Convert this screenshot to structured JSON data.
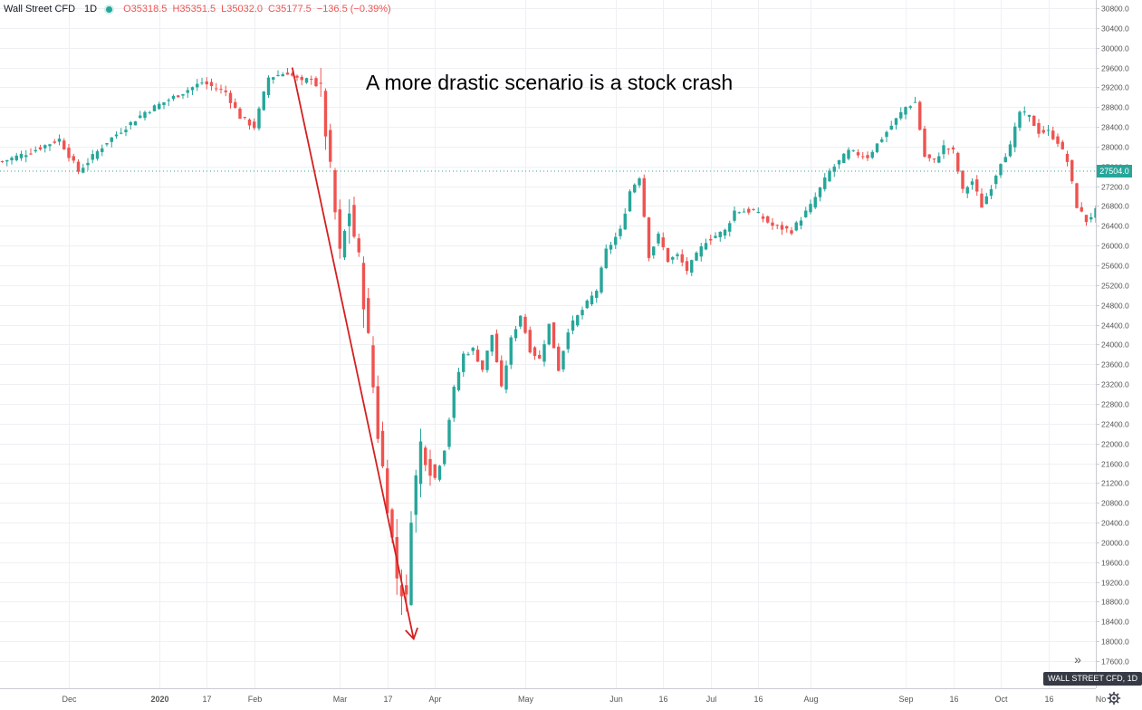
{
  "legend": {
    "symbol": "Wall Street CFD",
    "timeframe": "1D",
    "open": "O35318.5",
    "high": "H35351.5",
    "low": "L35032.0",
    "close": "C35177.5",
    "change": "−136.5 (−0.39%)"
  },
  "annotation": "A more drastic scenario is a stock crash",
  "last_price_label": "27504.0",
  "symbol_tag": "WALL STREET CFD, 1D",
  "icons": {
    "scroll": "double-chevron-right-icon",
    "settings": "gear-icon"
  },
  "colors": {
    "up": "#26a69a",
    "down": "#ef5350",
    "arrow": "#d42020",
    "grid": "#eef0f3"
  },
  "chart_data": {
    "type": "candlestick",
    "ylim": [
      17400,
      30900
    ],
    "y_ticks": [
      "30800.0",
      "30400.0",
      "30000.0",
      "29600.0",
      "29200.0",
      "28800.0",
      "28400.0",
      "28000.0",
      "27600.0",
      "27200.0",
      "26800.0",
      "26400.0",
      "26000.0",
      "25600.0",
      "25200.0",
      "24800.0",
      "24400.0",
      "24000.0",
      "23600.0",
      "23200.0",
      "22800.0",
      "22400.0",
      "22000.0",
      "21600.0",
      "21200.0",
      "20800.0",
      "20400.0",
      "20000.0",
      "19600.0",
      "19200.0",
      "18800.0",
      "18400.0",
      "18000.0",
      "17600.0"
    ],
    "x_ticks": [
      {
        "label": "Dec",
        "index": 14
      },
      {
        "label": "2020",
        "index": 33
      },
      {
        "label": "17",
        "index": 43
      },
      {
        "label": "Feb",
        "index": 53
      },
      {
        "label": "Mar",
        "index": 71
      },
      {
        "label": "17",
        "index": 81
      },
      {
        "label": "Apr",
        "index": 91
      },
      {
        "label": "May",
        "index": 110
      },
      {
        "label": "Jun",
        "index": 129
      },
      {
        "label": "16",
        "index": 139
      },
      {
        "label": "Jul",
        "index": 149
      },
      {
        "label": "16",
        "index": 159
      },
      {
        "label": "Aug",
        "index": 170
      },
      {
        "label": "Sep",
        "index": 190
      },
      {
        "label": "16",
        "index": 200
      },
      {
        "label": "Oct",
        "index": 210
      },
      {
        "label": "16",
        "index": 220
      },
      {
        "label": "No",
        "index": 231
      }
    ],
    "anchors": [
      [
        0,
        27700
      ],
      [
        6,
        27900
      ],
      [
        12,
        28150
      ],
      [
        16,
        27500
      ],
      [
        22,
        28100
      ],
      [
        30,
        28700
      ],
      [
        36,
        29000
      ],
      [
        42,
        29300
      ],
      [
        47,
        29100
      ],
      [
        50,
        28600
      ],
      [
        53,
        28400
      ],
      [
        56,
        29400
      ],
      [
        60,
        29500
      ],
      [
        63,
        29300
      ],
      [
        65,
        29400
      ],
      [
        67,
        29100
      ],
      [
        69,
        27500
      ],
      [
        71,
        25800
      ],
      [
        73,
        26700
      ],
      [
        75,
        25700
      ],
      [
        77,
        24100
      ],
      [
        79,
        22200
      ],
      [
        81,
        20800
      ],
      [
        83,
        19300
      ],
      [
        85,
        18800
      ],
      [
        86,
        20600
      ],
      [
        88,
        22000
      ],
      [
        91,
        21300
      ],
      [
        93,
        21900
      ],
      [
        95,
        23100
      ],
      [
        97,
        23800
      ],
      [
        99,
        23900
      ],
      [
        101,
        23500
      ],
      [
        103,
        24200
      ],
      [
        105,
        23100
      ],
      [
        107,
        24100
      ],
      [
        109,
        24600
      ],
      [
        111,
        23900
      ],
      [
        113,
        23700
      ],
      [
        115,
        24400
      ],
      [
        117,
        23500
      ],
      [
        119,
        24300
      ],
      [
        122,
        24700
      ],
      [
        125,
        25100
      ],
      [
        127,
        25900
      ],
      [
        130,
        26300
      ],
      [
        132,
        27100
      ],
      [
        134,
        27400
      ],
      [
        136,
        25800
      ],
      [
        138,
        26200
      ],
      [
        140,
        25700
      ],
      [
        142,
        25800
      ],
      [
        144,
        25500
      ],
      [
        146,
        25800
      ],
      [
        148,
        26100
      ],
      [
        152,
        26300
      ],
      [
        154,
        26700
      ],
      [
        158,
        26700
      ],
      [
        162,
        26400
      ],
      [
        166,
        26300
      ],
      [
        170,
        26800
      ],
      [
        174,
        27500
      ],
      [
        178,
        27900
      ],
      [
        182,
        27800
      ],
      [
        186,
        28300
      ],
      [
        190,
        28800
      ],
      [
        192,
        28900
      ],
      [
        194,
        27800
      ],
      [
        196,
        27700
      ],
      [
        198,
        28000
      ],
      [
        200,
        27900
      ],
      [
        202,
        27100
      ],
      [
        204,
        27300
      ],
      [
        206,
        26800
      ],
      [
        208,
        27200
      ],
      [
        210,
        27700
      ],
      [
        212,
        28000
      ],
      [
        214,
        28700
      ],
      [
        216,
        28600
      ],
      [
        218,
        28300
      ],
      [
        220,
        28300
      ],
      [
        222,
        28100
      ],
      [
        224,
        27700
      ],
      [
        226,
        26800
      ],
      [
        228,
        26500
      ],
      [
        230,
        26700
      ]
    ],
    "last_price": 27504.0,
    "trend_arrow": {
      "from": {
        "index": 61,
        "price": 29600
      },
      "to": {
        "index": 85,
        "price": 18050
      }
    }
  }
}
